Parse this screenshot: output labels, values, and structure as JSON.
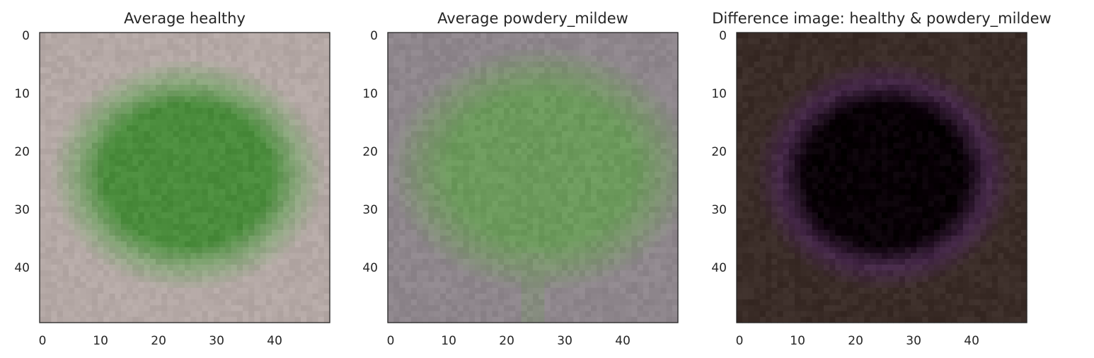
{
  "chart_data": [
    {
      "type": "heatmap",
      "title": "Average healthy",
      "xlabel": "",
      "ylabel": "",
      "xlim": [
        -0.5,
        49.5
      ],
      "ylim": [
        49.5,
        -0.5
      ],
      "xticks": [
        0,
        10,
        20,
        30,
        40
      ],
      "yticks": [
        0,
        10,
        20,
        30,
        40
      ],
      "xtick_labels": [
        "0",
        "10",
        "20",
        "30",
        "40"
      ],
      "ytick_labels": [
        "0",
        "10",
        "20",
        "30",
        "40"
      ],
      "grid": false,
      "image": {
        "background_color": "#b4a8a5",
        "blob_color": "#4a8c3c",
        "edge_color": "#8aa67c",
        "blob_center": [
          25,
          24
        ],
        "blob_radius": [
          19,
          16
        ],
        "stem": false
      }
    },
    {
      "type": "heatmap",
      "title": "Average powdery_mildew",
      "xlabel": "",
      "ylabel": "",
      "xlim": [
        -0.5,
        49.5
      ],
      "ylim": [
        49.5,
        -0.5
      ],
      "xticks": [
        0,
        10,
        20,
        30,
        40
      ],
      "yticks": [
        0,
        10,
        20,
        30,
        40
      ],
      "xtick_labels": [
        "0",
        "10",
        "20",
        "30",
        "40"
      ],
      "ytick_labels": [
        "0",
        "10",
        "20",
        "30",
        "40"
      ],
      "grid": false,
      "image": {
        "background_color": "#8e868c",
        "blob_color": "#6c9a5c",
        "edge_color": "#7e9272",
        "blob_center": [
          26,
          23
        ],
        "blob_radius": [
          21,
          17
        ],
        "stem": true
      }
    },
    {
      "type": "heatmap",
      "title": "Difference image: healthy & powdery_mildew",
      "xlabel": "",
      "ylabel": "",
      "xlim": [
        -0.5,
        49.5
      ],
      "ylim": [
        49.5,
        -0.5
      ],
      "xticks": [
        0,
        10,
        20,
        30,
        40
      ],
      "yticks": [
        0,
        10,
        20,
        30,
        40
      ],
      "xtick_labels": [
        "0",
        "10",
        "20",
        "30",
        "40"
      ],
      "ytick_labels": [
        "0",
        "10",
        "20",
        "30",
        "40"
      ],
      "grid": false,
      "image": {
        "background_color": "#3a2c27",
        "blob_color": "#080006",
        "edge_color": "#452848",
        "blob_center": [
          25,
          24
        ],
        "blob_radius": [
          18,
          16
        ],
        "stem": false
      }
    }
  ]
}
